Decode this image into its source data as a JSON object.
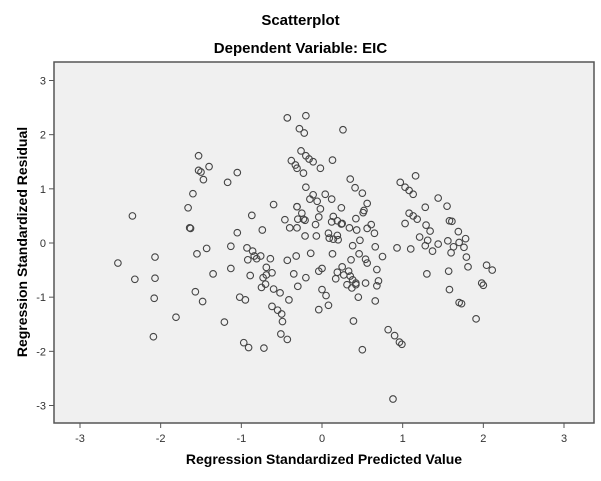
{
  "chart_data": {
    "type": "scatter",
    "title": "Scatterplot",
    "subtitle": "Dependent Variable: EIC",
    "xlabel": "Regression Standardized Predicted Value",
    "ylabel": "Regression Standardized Residual",
    "xlim": [
      -3.3,
      3.35
    ],
    "ylim": [
      -3.3,
      3.35
    ],
    "xticks": [
      -3,
      -2,
      -1,
      0,
      1,
      2,
      3
    ],
    "yticks": [
      -3,
      -2,
      -1,
      0,
      1,
      2,
      3
    ],
    "grid": false,
    "legend": null,
    "colors": {
      "plot_bg": "#f0f0f0",
      "frame": "#555555",
      "marker": "#444444"
    },
    "points": [
      [
        -2.35,
        0.5
      ],
      [
        -2.53,
        -0.37
      ],
      [
        -2.32,
        -0.67
      ],
      [
        -2.07,
        -0.26
      ],
      [
        -2.07,
        -0.65
      ],
      [
        -2.08,
        -1.02
      ],
      [
        -2.09,
        -1.73
      ],
      [
        -1.81,
        -1.37
      ],
      [
        -1.64,
        0.28
      ],
      [
        -1.66,
        0.65
      ],
      [
        -1.6,
        0.91
      ],
      [
        -1.55,
        -0.2
      ],
      [
        -1.48,
        -1.08
      ],
      [
        -1.57,
        -0.9
      ],
      [
        -1.43,
        -0.1
      ],
      [
        -1.35,
        -0.57
      ],
      [
        -1.53,
        1.34
      ],
      [
        -1.5,
        1.31
      ],
      [
        -1.4,
        1.41
      ],
      [
        -1.53,
        1.61
      ],
      [
        -1.47,
        1.17
      ],
      [
        -1.17,
        1.12
      ],
      [
        -1.05,
        1.3
      ],
      [
        -1.05,
        0.19
      ],
      [
        -1.13,
        -0.47
      ],
      [
        -1.02,
        -1.0
      ],
      [
        -1.21,
        -1.46
      ],
      [
        -0.95,
        -1.05
      ],
      [
        -0.89,
        -0.6
      ],
      [
        -0.75,
        -0.82
      ],
      [
        -0.69,
        -0.59
      ],
      [
        -0.97,
        -1.84
      ],
      [
        -0.91,
        -1.93
      ],
      [
        -0.72,
        -1.94
      ],
      [
        -0.92,
        -0.31
      ],
      [
        -0.87,
        0.51
      ],
      [
        -0.84,
        -0.24
      ],
      [
        -0.81,
        -0.29
      ],
      [
        -0.64,
        -0.29
      ],
      [
        -0.73,
        -0.64
      ],
      [
        -0.7,
        -0.76
      ],
      [
        -0.6,
        -0.85
      ],
      [
        -0.52,
        -0.92
      ],
      [
        -0.35,
        -0.57
      ],
      [
        -0.62,
        -1.17
      ],
      [
        -0.55,
        -1.24
      ],
      [
        -0.5,
        -1.31
      ],
      [
        -0.41,
        -1.05
      ],
      [
        -0.49,
        -1.45
      ],
      [
        -0.51,
        -1.68
      ],
      [
        -0.43,
        -1.78
      ],
      [
        -0.93,
        -0.09
      ],
      [
        -0.86,
        -0.15
      ],
      [
        -0.76,
        -0.24
      ],
      [
        -0.69,
        -0.45
      ],
      [
        -0.62,
        -0.55
      ],
      [
        -0.3,
        -0.8
      ],
      [
        -0.74,
        0.24
      ],
      [
        -0.6,
        0.71
      ],
      [
        -0.46,
        0.43
      ],
      [
        -0.4,
        0.28
      ],
      [
        -0.31,
        0.67
      ],
      [
        -0.3,
        0.44
      ],
      [
        -0.21,
        0.42
      ],
      [
        -0.31,
        0.28
      ],
      [
        -0.08,
        0.34
      ],
      [
        -0.04,
        0.48
      ],
      [
        -0.43,
        -0.32
      ],
      [
        -0.32,
        -0.24
      ],
      [
        -0.21,
        0.13
      ],
      [
        -0.14,
        -0.19
      ],
      [
        0.0,
        -0.47
      ],
      [
        -0.43,
        2.31
      ],
      [
        -0.2,
        2.35
      ],
      [
        -0.28,
        2.11
      ],
      [
        -0.22,
        2.03
      ],
      [
        0.26,
        2.09
      ],
      [
        -0.26,
        1.7
      ],
      [
        -0.2,
        1.61
      ],
      [
        -0.16,
        1.55
      ],
      [
        -0.11,
        1.5
      ],
      [
        -0.38,
        1.52
      ],
      [
        -0.33,
        1.44
      ],
      [
        -0.31,
        1.38
      ],
      [
        -0.02,
        1.38
      ],
      [
        -0.23,
        1.29
      ],
      [
        0.13,
        1.53
      ],
      [
        -0.2,
        1.03
      ],
      [
        -0.11,
        0.89
      ],
      [
        -0.15,
        0.81
      ],
      [
        -0.06,
        0.77
      ],
      [
        0.04,
        0.9
      ],
      [
        0.12,
        0.81
      ],
      [
        0.35,
        1.18
      ],
      [
        0.41,
        1.02
      ],
      [
        0.5,
        0.92
      ],
      [
        0.56,
        0.73
      ],
      [
        -0.31,
        0.67
      ],
      [
        -0.25,
        0.55
      ],
      [
        -0.23,
        0.44
      ],
      [
        -0.02,
        0.63
      ],
      [
        0.24,
        0.65
      ],
      [
        0.14,
        0.49
      ],
      [
        0.19,
        0.41
      ],
      [
        0.24,
        0.35
      ],
      [
        0.25,
        0.36
      ],
      [
        0.43,
        0.24
      ],
      [
        0.34,
        0.28
      ],
      [
        0.12,
        0.39
      ],
      [
        -0.07,
        0.13
      ],
      [
        0.08,
        0.18
      ],
      [
        0.09,
        0.09
      ],
      [
        0.14,
        0.07
      ],
      [
        0.19,
        0.14
      ],
      [
        0.2,
        0.06
      ],
      [
        0.42,
        0.45
      ],
      [
        0.52,
        0.6
      ],
      [
        0.56,
        0.27
      ],
      [
        0.61,
        0.34
      ],
      [
        0.65,
        0.18
      ],
      [
        0.38,
        -0.05
      ],
      [
        0.47,
        0.05
      ],
      [
        0.46,
        -0.2
      ],
      [
        0.54,
        -0.3
      ],
      [
        0.36,
        -0.31
      ],
      [
        0.25,
        -0.44
      ],
      [
        0.33,
        -0.52
      ],
      [
        0.38,
        -0.68
      ],
      [
        0.35,
        -0.61
      ],
      [
        0.27,
        -0.59
      ],
      [
        0.19,
        -0.54
      ],
      [
        0.31,
        -0.77
      ],
      [
        0.37,
        -0.83
      ],
      [
        0.42,
        -0.74
      ],
      [
        0.42,
        -0.77
      ],
      [
        0.45,
        -1.0
      ],
      [
        0.54,
        -0.74
      ],
      [
        0.68,
        -0.79
      ],
      [
        0.7,
        -0.7
      ],
      [
        0.66,
        -1.07
      ],
      [
        0.39,
        -1.44
      ],
      [
        0.5,
        -1.97
      ],
      [
        0.82,
        -1.6
      ],
      [
        0.9,
        -1.71
      ],
      [
        0.96,
        -1.83
      ],
      [
        0.99,
        -1.87
      ],
      [
        0.88,
        -2.88
      ],
      [
        0.05,
        -0.97
      ],
      [
        -0.04,
        -0.52
      ],
      [
        0.13,
        -0.2
      ],
      [
        0.0,
        -0.86
      ],
      [
        0.08,
        -1.15
      ],
      [
        -0.04,
        -1.23
      ],
      [
        0.68,
        -0.49
      ],
      [
        0.56,
        -0.37
      ],
      [
        0.75,
        -0.25
      ],
      [
        0.93,
        -0.09
      ],
      [
        1.1,
        -0.11
      ],
      [
        1.31,
        0.05
      ],
      [
        1.21,
        0.11
      ],
      [
        1.28,
        -0.05
      ],
      [
        1.03,
        0.36
      ],
      [
        0.97,
        1.12
      ],
      [
        1.03,
        1.03
      ],
      [
        1.08,
        0.97
      ],
      [
        1.13,
        0.9
      ],
      [
        1.16,
        1.24
      ],
      [
        1.08,
        0.55
      ],
      [
        1.13,
        0.5
      ],
      [
        1.18,
        0.44
      ],
      [
        1.28,
        0.66
      ],
      [
        1.44,
        0.83
      ],
      [
        1.55,
        0.68
      ],
      [
        1.29,
        0.33
      ],
      [
        1.34,
        0.22
      ],
      [
        1.58,
        0.41
      ],
      [
        1.61,
        0.4
      ],
      [
        1.69,
        0.21
      ],
      [
        1.78,
        0.08
      ],
      [
        1.7,
        0.01
      ],
      [
        1.76,
        -0.08
      ],
      [
        1.56,
        0.04
      ],
      [
        1.63,
        -0.07
      ],
      [
        1.44,
        -0.02
      ],
      [
        1.37,
        -0.15
      ],
      [
        1.6,
        -0.18
      ],
      [
        1.81,
        -0.44
      ],
      [
        1.79,
        -0.26
      ],
      [
        2.04,
        -0.41
      ],
      [
        2.11,
        -0.5
      ],
      [
        1.57,
        -0.52
      ],
      [
        1.3,
        -0.57
      ],
      [
        1.7,
        -1.1
      ],
      [
        1.73,
        -1.12
      ],
      [
        1.98,
        -0.74
      ],
      [
        2.0,
        -0.78
      ],
      [
        1.58,
        -0.86
      ],
      [
        1.91,
        -1.4
      ],
      [
        0.66,
        -0.07
      ],
      [
        0.51,
        0.56
      ],
      [
        -1.13,
        -0.06
      ],
      [
        -0.2,
        -0.64
      ],
      [
        0.17,
        -0.66
      ],
      [
        -1.63,
        0.27
      ]
    ]
  }
}
